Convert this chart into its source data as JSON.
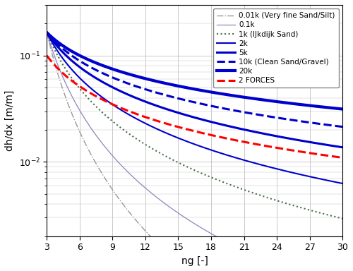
{
  "ng_range": [
    3,
    30
  ],
  "ng_ticks": [
    3,
    6,
    9,
    12,
    15,
    18,
    21,
    24,
    27,
    30
  ],
  "ylim": [
    0.002,
    0.3
  ],
  "xlabel": "ng [-]",
  "ylabel": "dh/dx [m/m]",
  "background_color": "#ffffff",
  "grid_color": "#c0c0c0",
  "curves": [
    {
      "label": "0.01k (Very fine Sand/Silt)",
      "k": 0.01,
      "color": "#999999",
      "linestyle": "dashdot",
      "linewidth": 1.0,
      "b": 3.1,
      "A_ng3": 0.165
    },
    {
      "label": "0.1k",
      "k": 0.1,
      "color": "#8888bb",
      "linestyle": "solid",
      "linewidth": 0.9,
      "b": 2.43,
      "A_ng3": 0.165
    },
    {
      "label": "1k (IJkdijk Sand)",
      "k": 1.0,
      "color": "#4a6a4a",
      "linestyle": "dotted",
      "linewidth": 1.5,
      "b": 1.75,
      "A_ng3": 0.165
    },
    {
      "label": "2k",
      "k": 2.0,
      "color": "#0000cc",
      "linestyle": "solid",
      "linewidth": 1.5,
      "b": 1.42,
      "A_ng3": 0.165
    },
    {
      "label": "5k",
      "k": 5.0,
      "color": "#0000cc",
      "linestyle": "solid",
      "linewidth": 2.2,
      "b": 1.08,
      "A_ng3": 0.165
    },
    {
      "label": "10k (Clean Sand/Gravel)",
      "k": 10.0,
      "color": "#0000cc",
      "linestyle": "dashed",
      "linewidth": 2.2,
      "b": 0.887,
      "A_ng3": 0.165
    },
    {
      "label": "20k",
      "k": 20.0,
      "color": "#0000cc",
      "linestyle": "solid",
      "linewidth": 3.0,
      "b": 0.72,
      "A_ng3": 0.165
    }
  ],
  "forces_curve": {
    "label": "2 FORCES",
    "color": "#ff0000",
    "linestyle": "dashed",
    "linewidth": 2.2,
    "b": 0.96,
    "A_ng3": 0.1
  },
  "legend_fontsize": 7.5,
  "axis_fontsize": 10,
  "tick_fontsize": 9
}
